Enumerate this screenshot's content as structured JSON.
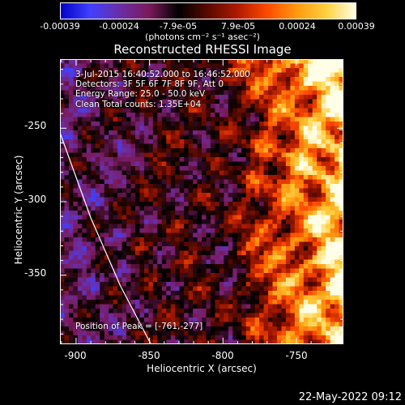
{
  "colorbar": {
    "tick_labels": [
      "-0.00039",
      "-0.00024",
      "-7.9e-05",
      "7.9e-05",
      "0.00024",
      "0.00039"
    ],
    "unit_label": "(photons cm⁻² s⁻¹ asec⁻²)",
    "range": [
      -0.00039,
      0.00039
    ],
    "colormap": [
      "#0000c8",
      "#4040ff",
      "#6a2ea8",
      "#7a1a5a",
      "#000000",
      "#5a0a00",
      "#b01a00",
      "#ff4a00",
      "#ff9a10",
      "#ffd040",
      "#ffffe8"
    ]
  },
  "chart_data": {
    "type": "heatmap",
    "title": "Reconstructed RHESSI Image",
    "xlabel": "Heliocentric X (arcsec)",
    "ylabel": "Heliocentric Y (arcsec)",
    "xlim": [
      -911,
      -718
    ],
    "ylim": [
      -397,
      -203
    ],
    "x_ticks": [
      -900,
      -850,
      -800,
      -750
    ],
    "y_ticks": [
      -250,
      -300,
      -350
    ],
    "x_tick_labels": [
      "-900",
      "-850",
      "-800",
      "-750"
    ],
    "y_tick_labels": [
      "-250",
      "-300",
      "-350"
    ],
    "annotations": [
      "3-Jul-2015 16:40:52.000 to 16:46:52.000",
      "Detectors: 3F 5F 6F 7F 8F 9F, Att 0",
      "Energy Range: 25.0 - 50.0 keV",
      "Clean      Total counts: 1.35E+04"
    ],
    "peak_label": "Position of Peak = [-761,-277]",
    "peak_position": [
      -761,
      -277
    ],
    "limb_curve": [
      [
        -911,
        -253
      ],
      [
        -890,
        -311
      ],
      [
        -870,
        -357
      ],
      [
        -849,
        -397
      ]
    ]
  },
  "footer": {
    "timestamp": "22-May-2022 09:12"
  }
}
